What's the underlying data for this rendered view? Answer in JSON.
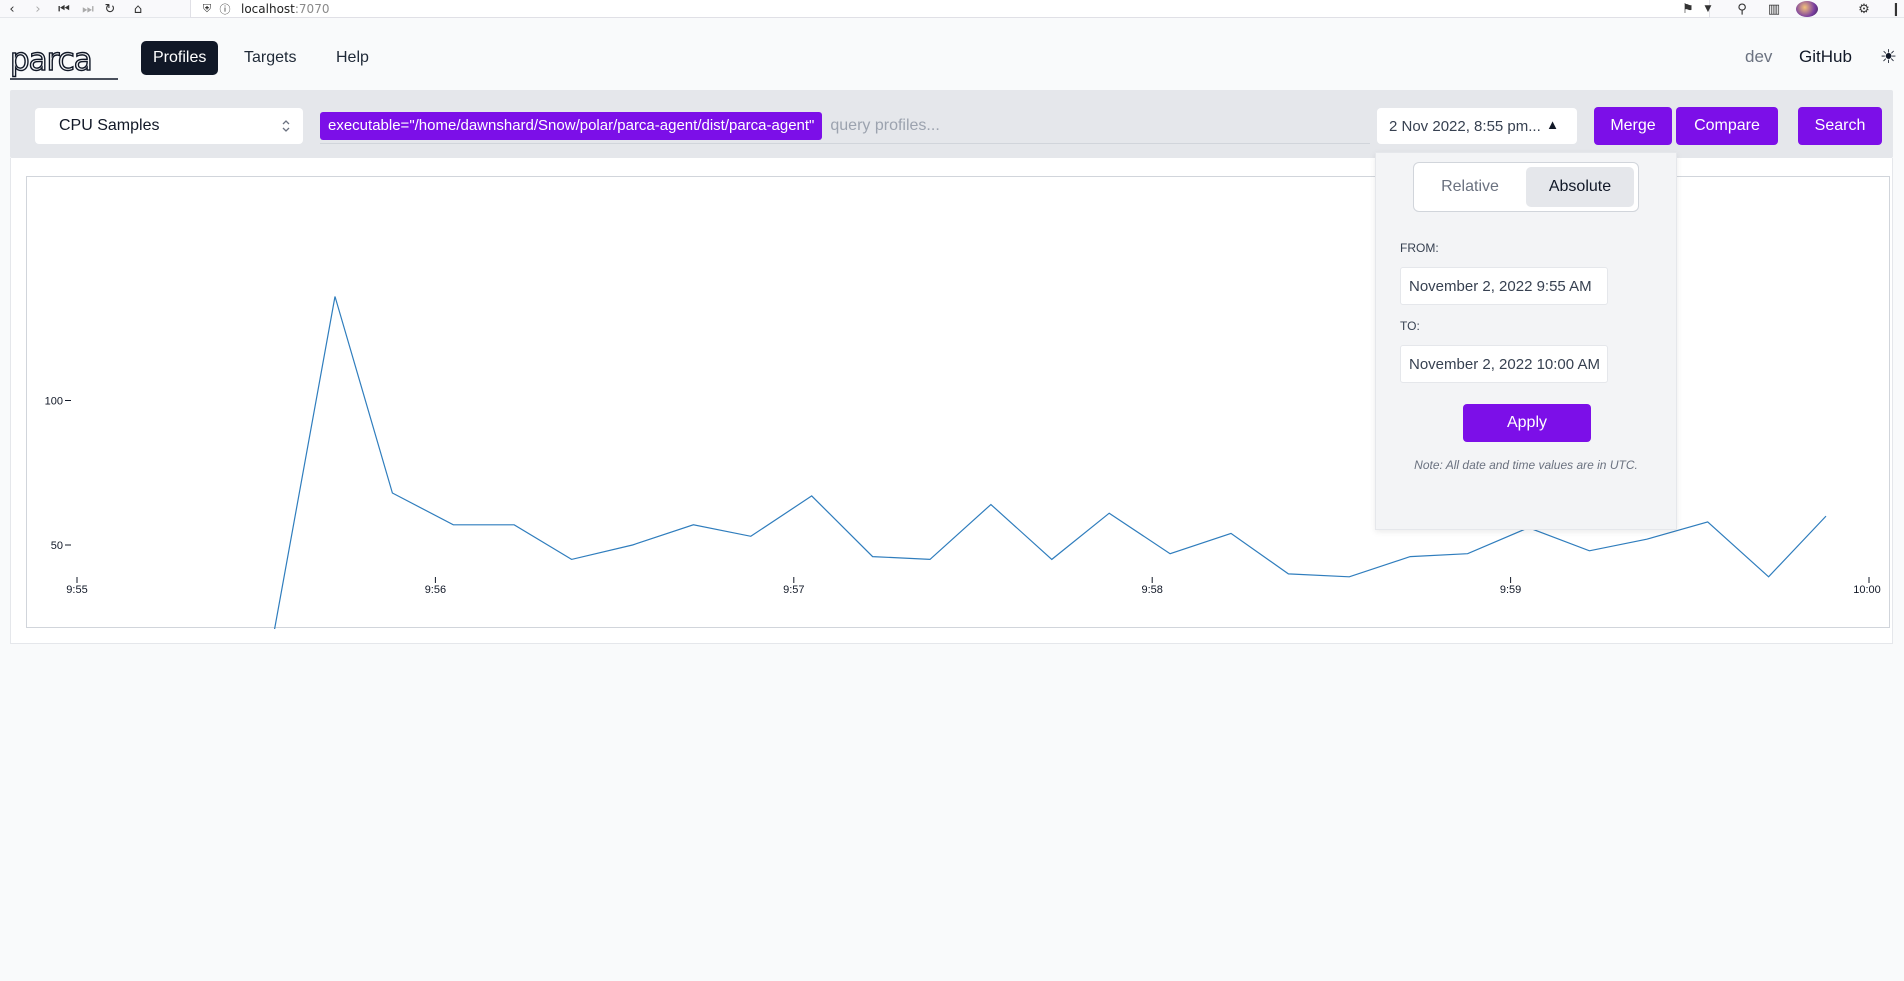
{
  "browser": {
    "url_host": "localhost",
    "url_port": ":7070"
  },
  "header": {
    "logo_text": "parca",
    "nav": [
      {
        "label": "Profiles",
        "active": true
      },
      {
        "label": "Targets",
        "active": false
      },
      {
        "label": "Help",
        "active": false
      }
    ],
    "env_label": "dev",
    "github_label": "GitHub"
  },
  "query": {
    "profile_type": "CPU Samples",
    "matcher": "executable=\"/home/dawnshard/Snow/polar/parca-agent/dist/parca-agent\"",
    "placeholder": "query profiles...",
    "time_range": "2 Nov 2022, 8:55 pm...",
    "merge_label": "Merge",
    "compare_label": "Compare",
    "search_label": "Search"
  },
  "datepicker": {
    "relative_label": "Relative",
    "absolute_label": "Absolute",
    "from_label": "FROM:",
    "from_value": "November 2, 2022 9:55 AM",
    "to_label": "TO:",
    "to_value": "November 2, 2022 10:00 AM",
    "apply_label": "Apply",
    "note": "Note: All date and time values are in UTC."
  },
  "chart_data": {
    "type": "line",
    "x_ticks": [
      "9:55",
      "9:56",
      "9:57",
      "9:58",
      "9:59",
      "10:00"
    ],
    "y_ticks": [
      50,
      100
    ],
    "color": "#2f7dbd",
    "x_minutes": [
      0.55,
      0.72,
      0.88,
      1.05,
      1.22,
      1.38,
      1.55,
      1.72,
      1.88,
      2.05,
      2.22,
      2.38,
      2.55,
      2.72,
      2.88,
      3.05,
      3.22,
      3.38,
      3.55,
      3.72,
      3.88,
      4.05,
      4.22,
      4.38,
      4.55,
      4.72,
      4.88
    ],
    "values": [
      20,
      136,
      68,
      57,
      57,
      45,
      50,
      57,
      53,
      67,
      46,
      45,
      64,
      45,
      61,
      47,
      54,
      40,
      39,
      46,
      47,
      56,
      48,
      52,
      58,
      39,
      60
    ]
  }
}
